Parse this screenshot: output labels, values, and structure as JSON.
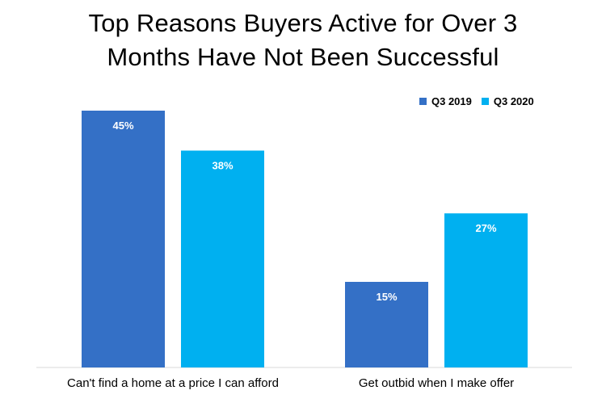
{
  "title_lines": [
    "Top Reasons Buyers Active for Over 3",
    "Months Have Not Been Successful"
  ],
  "legend": {
    "position": "top-right",
    "items": [
      {
        "label": "Q3 2019",
        "color": "#3470c6"
      },
      {
        "label": "Q3 2020",
        "color": "#00b0f0"
      }
    ]
  },
  "chart_data": {
    "type": "bar",
    "title": "Top Reasons Buyers Active for Over 3 Months Have Not Been Successful",
    "categories": [
      "Can't find a home at a price I can afford",
      "Get outbid when I make offer"
    ],
    "series": [
      {
        "name": "Q3 2019",
        "color": "#3470c6",
        "values": [
          45,
          15
        ],
        "labels": [
          "45%",
          "15%"
        ]
      },
      {
        "name": "Q3 2020",
        "color": "#00b0f0",
        "values": [
          38,
          27
        ],
        "labels": [
          "38%",
          "27%"
        ]
      }
    ],
    "xlabel": "",
    "ylabel": "",
    "ylim": [
      0,
      45
    ],
    "grid": false,
    "legend_position": "top-right",
    "baseline_color": "#d9d9d9"
  }
}
